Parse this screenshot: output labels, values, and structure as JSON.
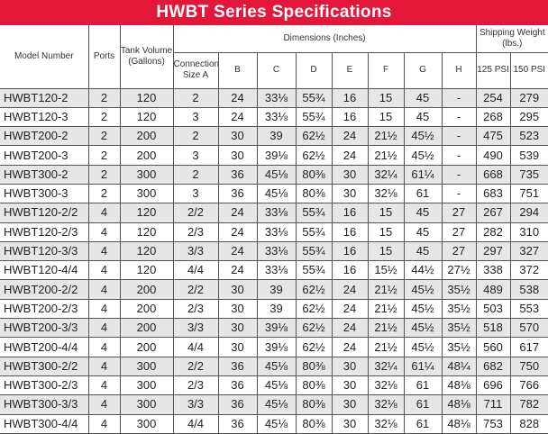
{
  "title": "HWBT Series Specifications",
  "headers": {
    "model": "Model Number",
    "ports": "Ports",
    "tank": "Tank Volume (Gallons)",
    "dimensions": "Dimensions (Inches)",
    "shipping": "Shipping Weight (lbs.)",
    "a": "Connection Size A",
    "b": "B",
    "c": "C",
    "d": "D",
    "e": "E",
    "f": "F",
    "g": "G",
    "h": "H",
    "psi125": "125 PSI",
    "psi150": "150 PSI"
  },
  "rows": [
    [
      "HWBT120-2",
      "2",
      "120",
      "2",
      "24",
      "33⅛",
      "55¾",
      "16",
      "15",
      "45",
      "-",
      "254",
      "279"
    ],
    [
      "HWBT120-3",
      "2",
      "120",
      "3",
      "24",
      "33⅛",
      "55¾",
      "16",
      "15",
      "45",
      "-",
      "268",
      "295"
    ],
    [
      "HWBT200-2",
      "2",
      "200",
      "2",
      "30",
      "39",
      "62½",
      "24",
      "21½",
      "45½",
      "-",
      "475",
      "523"
    ],
    [
      "HWBT200-3",
      "2",
      "200",
      "3",
      "30",
      "39⅛",
      "62½",
      "24",
      "21½",
      "45½",
      "-",
      "490",
      "539"
    ],
    [
      "HWBT300-2",
      "2",
      "300",
      "2",
      "36",
      "45⅛",
      "80⅜",
      "30",
      "32¼",
      "61¼",
      "-",
      "668",
      "735"
    ],
    [
      "HWBT300-3",
      "2",
      "300",
      "3",
      "36",
      "45⅛",
      "80⅜",
      "30",
      "32⅛",
      "61",
      "-",
      "683",
      "751"
    ],
    [
      "HWBT120-2/2",
      "4",
      "120",
      "2/2",
      "24",
      "33⅛",
      "55¾",
      "16",
      "15",
      "45",
      "27",
      "267",
      "294"
    ],
    [
      "HWBT120-2/3",
      "4",
      "120",
      "2/3",
      "24",
      "33⅛",
      "55¾",
      "16",
      "15",
      "45",
      "27",
      "282",
      "310"
    ],
    [
      "HWBT120-3/3",
      "4",
      "120",
      "3/3",
      "24",
      "33⅛",
      "55¾",
      "16",
      "15",
      "45",
      "27",
      "297",
      "327"
    ],
    [
      "HWBT120-4/4",
      "4",
      "120",
      "4/4",
      "24",
      "33⅛",
      "55¾",
      "16",
      "15½",
      "44½",
      "27½",
      "338",
      "372"
    ],
    [
      "HWBT200-2/2",
      "4",
      "200",
      "2/2",
      "30",
      "39",
      "62½",
      "24",
      "21½",
      "45½",
      "35½",
      "489",
      "538"
    ],
    [
      "HWBT200-2/3",
      "4",
      "200",
      "2/3",
      "30",
      "39",
      "62½",
      "24",
      "21½",
      "45½",
      "35½",
      "503",
      "553"
    ],
    [
      "HWBT200-3/3",
      "4",
      "200",
      "3/3",
      "30",
      "39⅛",
      "62½",
      "24",
      "21½",
      "45½",
      "35½",
      "518",
      "570"
    ],
    [
      "HWBT200-4/4",
      "4",
      "200",
      "4/4",
      "30",
      "39⅛",
      "62½",
      "24",
      "21½",
      "45½",
      "35½",
      "560",
      "617"
    ],
    [
      "HWBT300-2/2",
      "4",
      "300",
      "2/2",
      "36",
      "45⅛",
      "80⅜",
      "30",
      "32¼",
      "61¼",
      "48¼",
      "682",
      "750"
    ],
    [
      "HWBT300-2/3",
      "4",
      "300",
      "2/3",
      "36",
      "45⅛",
      "80⅜",
      "30",
      "32⅛",
      "61",
      "48⅛",
      "696",
      "766"
    ],
    [
      "HWBT300-3/3",
      "4",
      "300",
      "3/3",
      "36",
      "45⅛",
      "80⅜",
      "30",
      "32⅛",
      "61",
      "48⅛",
      "711",
      "782"
    ],
    [
      "HWBT300-4/4",
      "4",
      "300",
      "4/4",
      "36",
      "45⅛",
      "80⅜",
      "30",
      "32⅛",
      "61",
      "48⅛",
      "753",
      "828"
    ]
  ],
  "colors": {
    "title_bg": "#e3173a",
    "shade": "#e6e6e6"
  }
}
